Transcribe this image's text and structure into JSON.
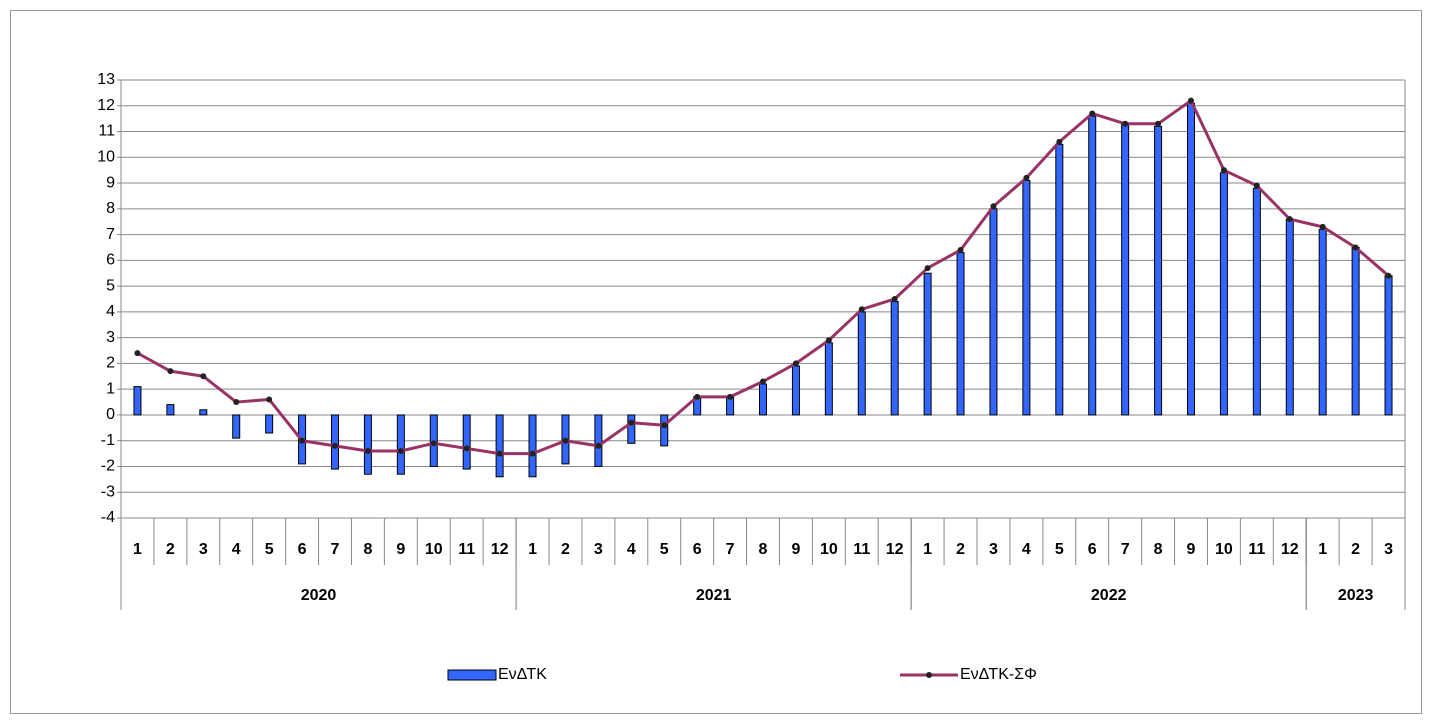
{
  "chart_data": {
    "type": "bar",
    "category_groups": [
      {
        "label": "2020",
        "categories": [
          "1",
          "2",
          "3",
          "4",
          "5",
          "6",
          "7",
          "8",
          "9",
          "10",
          "11",
          "12"
        ]
      },
      {
        "label": "2021",
        "categories": [
          "1",
          "2",
          "3",
          "4",
          "5",
          "6",
          "7",
          "8",
          "9",
          "10",
          "11",
          "12"
        ]
      },
      {
        "label": "2022",
        "categories": [
          "1",
          "2",
          "3",
          "4",
          "5",
          "6",
          "7",
          "8",
          "9",
          "10",
          "11",
          "12"
        ]
      },
      {
        "label": "2023",
        "categories": [
          "1",
          "2",
          "3"
        ]
      }
    ],
    "series": [
      {
        "name": "ΕνΔΤΚ",
        "type": "bar",
        "color": "#3366ff",
        "values": [
          1.1,
          0.4,
          0.2,
          -0.9,
          -0.7,
          -1.9,
          -2.1,
          -2.3,
          -2.3,
          -2.0,
          -2.1,
          -2.4,
          -2.4,
          -1.9,
          -2.0,
          -1.1,
          -1.2,
          0.7,
          0.7,
          1.2,
          1.9,
          2.8,
          4.0,
          4.4,
          5.5,
          6.3,
          8.0,
          9.1,
          10.5,
          11.6,
          11.3,
          11.2,
          12.1,
          9.4,
          8.8,
          7.6,
          7.2,
          6.5,
          5.4
        ]
      },
      {
        "name": "ΕνΔΤΚ-ΣΦ",
        "type": "line",
        "color": "#993366",
        "values": [
          2.4,
          1.7,
          1.5,
          0.5,
          0.6,
          -1.0,
          -1.2,
          -1.4,
          -1.4,
          -1.1,
          -1.3,
          -1.5,
          -1.5,
          -1.0,
          -1.2,
          -0.3,
          -0.4,
          0.7,
          0.7,
          1.3,
          2.0,
          2.9,
          4.1,
          4.5,
          5.7,
          6.4,
          8.1,
          9.2,
          10.6,
          11.7,
          11.3,
          11.3,
          12.2,
          9.5,
          8.9,
          7.6,
          7.3,
          6.5,
          5.4
        ]
      }
    ],
    "ylim": [
      -4,
      13
    ],
    "yticks": [
      -4,
      -3,
      -2,
      -1,
      0,
      1,
      2,
      3,
      4,
      5,
      6,
      7,
      8,
      9,
      10,
      11,
      12,
      13
    ],
    "grid": true
  }
}
